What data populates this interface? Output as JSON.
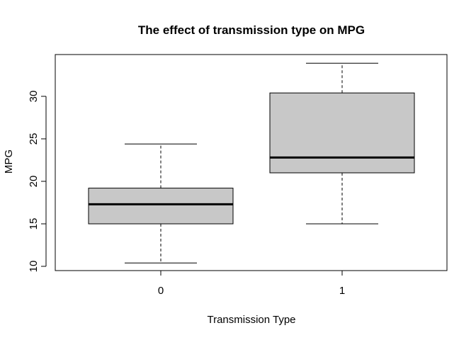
{
  "chart_data": {
    "type": "boxplot",
    "title": "The effect of transmission type on MPG",
    "xlabel": "Transmission Type",
    "ylabel": "MPG",
    "ylim": [
      9.4,
      34.5
    ],
    "yticks": [
      10,
      15,
      20,
      25,
      30
    ],
    "categories": [
      "0",
      "1"
    ],
    "boxes": [
      {
        "category": "0",
        "min": 10.4,
        "q1": 15.0,
        "median": 17.3,
        "q3": 19.2,
        "max": 24.4
      },
      {
        "category": "1",
        "min": 15.0,
        "q1": 21.0,
        "median": 22.8,
        "q3": 30.4,
        "max": 33.9
      }
    ],
    "colors": {
      "box_fill": "#c8c8c8",
      "stroke": "#000000"
    }
  }
}
